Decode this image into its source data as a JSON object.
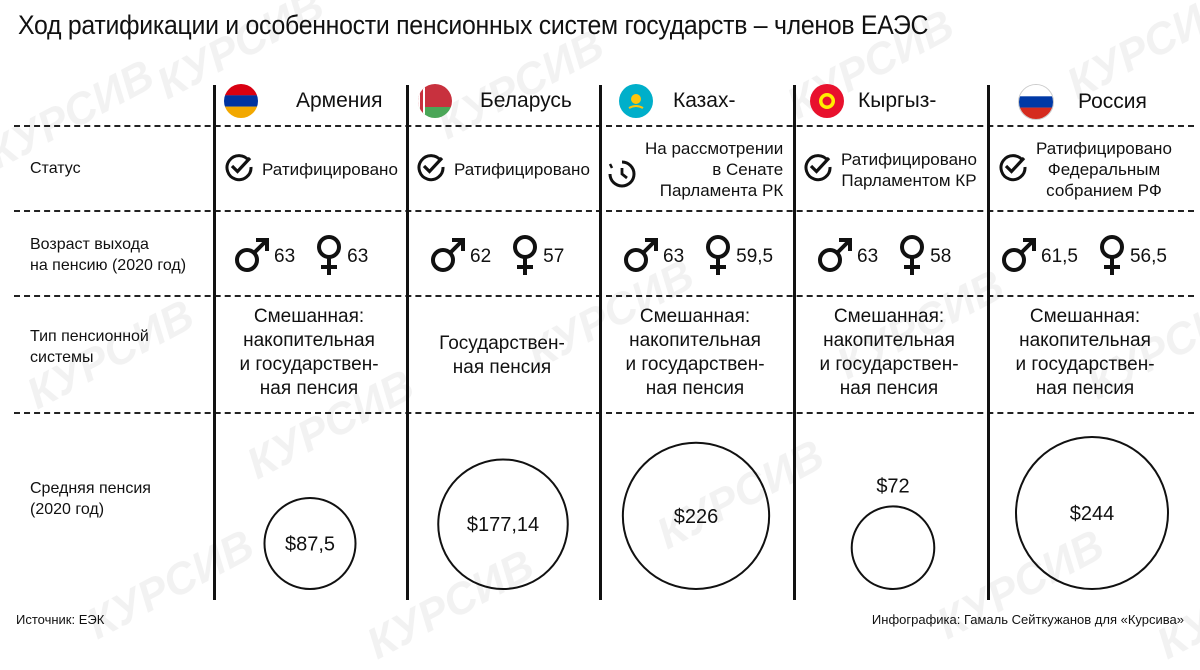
{
  "title": "Ход ратификации и особенности пенсионных систем государств – членов ЕАЭС",
  "row_labels": {
    "status": "Статус",
    "age": [
      "Возраст выхода",
      "на пенсию (2020 год)"
    ],
    "type": [
      "Тип пенсионной",
      "системы"
    ],
    "pension": [
      "Средняя пенсия",
      "(2020 год)"
    ]
  },
  "countries": [
    {
      "name": "Армения",
      "flag_colors": [
        "#D90012",
        "#0033A0",
        "#F2A800"
      ],
      "status_icon": "check-circle-icon",
      "status": [
        "Ратифицировано"
      ],
      "age_male": "63",
      "age_female": "63",
      "pension_type": [
        "Смешанная:",
        "накопительная",
        "и государствен-",
        "ная пенсия"
      ],
      "pension_label": "$87,5"
    },
    {
      "name": "Беларусь",
      "flag_colors": [
        "#C8313E",
        "#4AA657",
        "#FFFFFF"
      ],
      "status_icon": "check-circle-icon",
      "status": [
        "Ратифицировано"
      ],
      "age_male": "62",
      "age_female": "57",
      "pension_type": [
        "Государствен-",
        "ная пенсия"
      ],
      "pension_label": "$177,14"
    },
    {
      "name": "Казах-",
      "flag_colors": [
        "#00AFCA",
        "#FEC50C"
      ],
      "status_icon": "clock-pending-icon",
      "status": [
        "На рассмотрении",
        "в Сенате",
        "Парламента РК"
      ],
      "age_male": "63",
      "age_female": "59,5",
      "pension_type": [
        "Смешанная:",
        "накопительная",
        "и государствен-",
        "ная пенсия"
      ],
      "pension_label": "$226"
    },
    {
      "name": "Кыргыз-",
      "flag_colors": [
        "#E8112D",
        "#FFEF00"
      ],
      "status_icon": "check-circle-icon",
      "status": [
        "Ратифицировано",
        "Парламентом КР"
      ],
      "age_male": "63",
      "age_female": "58",
      "pension_type": [
        "Смешанная:",
        "накопительная",
        "и государствен-",
        "ная пенсия"
      ],
      "pension_label": "$72"
    },
    {
      "name": "Россия",
      "flag_colors": [
        "#FFFFFF",
        "#0039A6",
        "#D52B1E"
      ],
      "status_icon": "check-circle-icon",
      "status": [
        "Ратифицировано",
        "Федеральным",
        "собранием РФ"
      ],
      "age_male": "61,5",
      "age_female": "56,5",
      "pension_type": [
        "Смешанная:",
        "накопительная",
        "и государствен-",
        "ная пенсия"
      ],
      "pension_label": "$244"
    }
  ],
  "chart_data": {
    "type": "bubble",
    "title": "Средняя пенсия (2020 год)",
    "categories": [
      "Армения",
      "Беларусь",
      "Казах-",
      "Кыргыз-",
      "Россия"
    ],
    "values": [
      87.5,
      177.14,
      226,
      72,
      244
    ],
    "unit": "$"
  },
  "watermark": "КУРСИВ",
  "footer": {
    "source": "Источник: ЕЭК",
    "credit": "Инфографика: Гамаль Сейткужанов для «Курсива»"
  }
}
